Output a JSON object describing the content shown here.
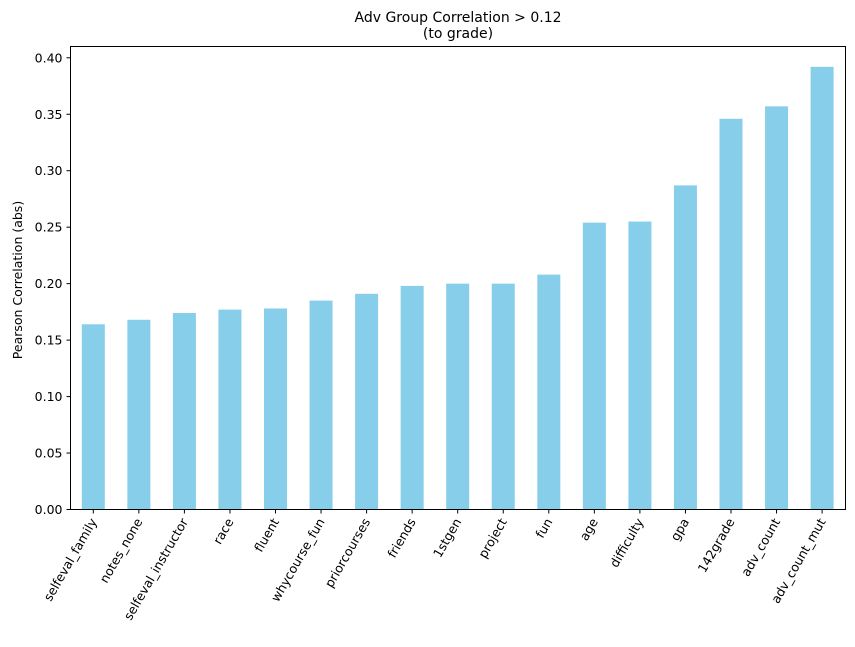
{
  "chart_data": {
    "type": "bar",
    "title": "Adv Group Correlation > 0.12",
    "subtitle": "(to grade)",
    "xlabel": "",
    "ylabel": "Pearson Correlation (abs)",
    "ylim": [
      0,
      0.41
    ],
    "yticks": [
      "0.00",
      "0.05",
      "0.10",
      "0.15",
      "0.20",
      "0.25",
      "0.30",
      "0.35",
      "0.40"
    ],
    "bar_color": "#87ceeb",
    "grid": false,
    "legend": "none",
    "categories": [
      "selfeval_family",
      "notes_none",
      "selfeval_instructor",
      "race",
      "fluent",
      "whycourse_fun",
      "priorcourses",
      "friends",
      "1stgen",
      "project",
      "fun",
      "age",
      "difficulty",
      "gpa",
      "142grade",
      "adv_count",
      "adv_count_mut"
    ],
    "values": [
      0.164,
      0.168,
      0.174,
      0.177,
      0.178,
      0.185,
      0.191,
      0.198,
      0.2,
      0.2,
      0.208,
      0.254,
      0.255,
      0.287,
      0.346,
      0.357,
      0.392
    ]
  }
}
